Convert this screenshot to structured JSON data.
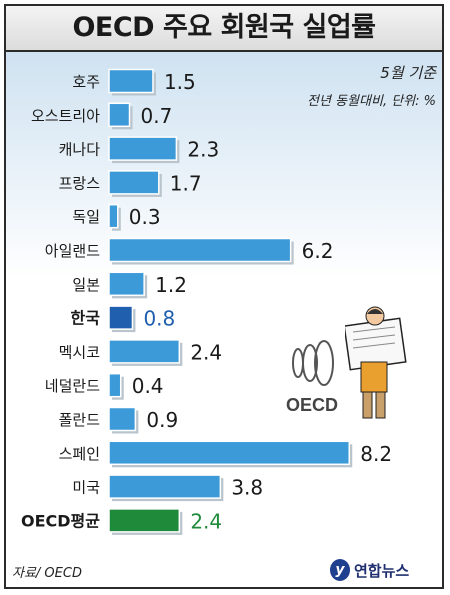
{
  "title": "OECD 주요 회원국 실업률",
  "note_period": "5월 기준",
  "note_unit": "전년 동월대비, 단위: %",
  "source": "자료/ OECD",
  "logo_text": "연합뉴스",
  "emblem_text": "OECD",
  "colors": {
    "bar": "#3d9ad8",
    "korea_bar": "#1f5fae",
    "korea_text": "#1f5fae",
    "average_bar": "#1f8a3a",
    "average_text": "#1f8a3a"
  },
  "chart_data": {
    "type": "bar",
    "orientation": "horizontal",
    "title": "OECD 주요 회원국 실업률",
    "categories": [
      "호주",
      "오스트리아",
      "캐나다",
      "프랑스",
      "독일",
      "아일랜드",
      "일본",
      "한국",
      "멕시코",
      "네덜란드",
      "폴란드",
      "스페인",
      "미국",
      "OECD평균"
    ],
    "values": [
      1.5,
      0.7,
      2.3,
      1.7,
      0.3,
      6.2,
      1.2,
      0.8,
      2.4,
      0.4,
      0.9,
      8.2,
      3.8,
      2.4
    ],
    "value_labels": [
      "1.5",
      "0.7",
      "2.3",
      "1.7",
      "0.3",
      "6.2",
      "1.2",
      "0.8",
      "2.4",
      "0.4",
      "0.9",
      "8.2",
      "3.8",
      "2.4"
    ],
    "highlight": {
      "한국": "korea",
      "OECD평균": "average"
    },
    "xlim": [
      0,
      8.5
    ],
    "grid": false,
    "legend": "none"
  }
}
